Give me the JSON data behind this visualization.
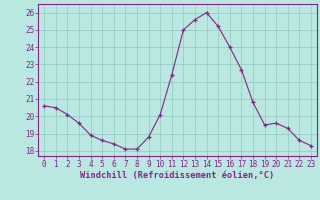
{
  "x": [
    0,
    1,
    2,
    3,
    4,
    5,
    6,
    7,
    8,
    9,
    10,
    11,
    12,
    13,
    14,
    15,
    16,
    17,
    18,
    19,
    20,
    21,
    22,
    23
  ],
  "y": [
    20.6,
    20.5,
    20.1,
    19.6,
    18.9,
    18.6,
    18.4,
    18.1,
    18.1,
    18.8,
    20.1,
    22.4,
    25.0,
    25.6,
    26.0,
    25.2,
    24.0,
    22.7,
    20.8,
    19.5,
    19.6,
    19.3,
    18.6,
    18.3
  ],
  "line_color": "#882288",
  "marker": "+",
  "marker_size": 3.5,
  "marker_linewidth": 0.9,
  "line_width": 0.8,
  "bg_color": "#b8e8e0",
  "grid_color": "#90c8c0",
  "ylabel_ticks": [
    18,
    19,
    20,
    21,
    22,
    23,
    24,
    25,
    26
  ],
  "xlabel_ticks": [
    0,
    1,
    2,
    3,
    4,
    5,
    6,
    7,
    8,
    9,
    10,
    11,
    12,
    13,
    14,
    15,
    16,
    17,
    18,
    19,
    20,
    21,
    22,
    23
  ],
  "xlabel_label": "Windchill (Refroidissement éolien,°C)",
  "ylim": [
    17.7,
    26.5
  ],
  "xlim": [
    -0.5,
    23.5
  ],
  "axis_color": "#882288",
  "tick_color": "#882288",
  "label_color": "#882288",
  "tick_fontsize": 5.5,
  "label_fontsize": 6.2
}
